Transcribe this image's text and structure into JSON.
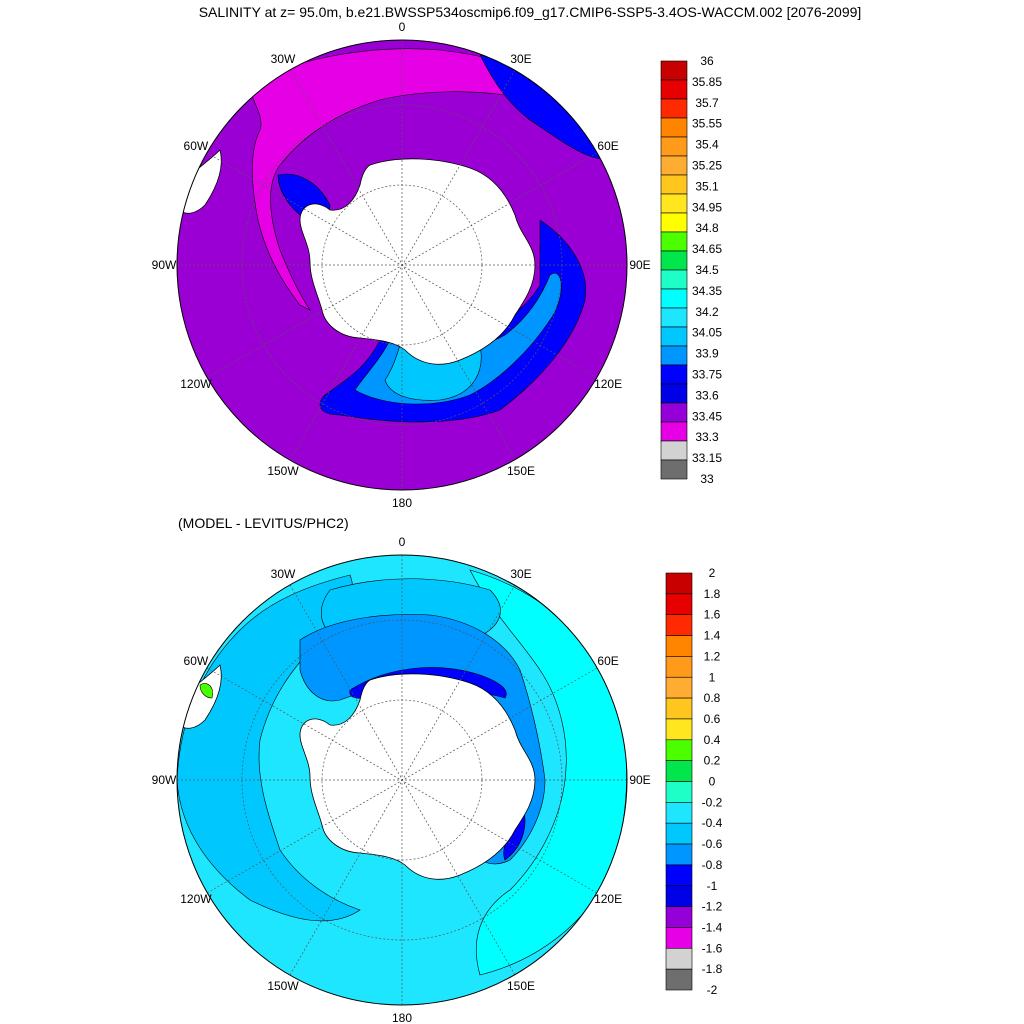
{
  "main_title": "SALINITY at z=  95.0m, b.e21.BWSSP534oscmip6.f09_g17.CMIP6-SSP5-3.4OS-WACCM.002 [2076-2099]",
  "subtitle": "(MODEL - LEVITUS/PHC2)",
  "lon_labels": [
    "0",
    "30E",
    "60E",
    "90E",
    "120E",
    "150E",
    "180",
    "150W",
    "120W",
    "90W",
    "60W",
    "30W"
  ],
  "top_map": {
    "background_color": "#9a00d4",
    "colorbar": {
      "labels": [
        "36",
        "35.85",
        "35.7",
        "35.55",
        "35.4",
        "35.25",
        "35.1",
        "34.95",
        "34.8",
        "34.65",
        "34.5",
        "34.35",
        "34.2",
        "34.05",
        "33.9",
        "33.75",
        "33.6",
        "33.45",
        "33.3",
        "33.15",
        "33"
      ],
      "colors": [
        "#c80000",
        "#e60000",
        "#ff2a00",
        "#ff8400",
        "#ff9a1a",
        "#ffac33",
        "#ffc61e",
        "#ffe61e",
        "#ffff00",
        "#4cff00",
        "#00e64c",
        "#1effc8",
        "#00ffff",
        "#1ee6ff",
        "#00c8ff",
        "#0096ff",
        "#0000ff",
        "#0000e6",
        "#9600d8",
        "#e600e6",
        "#d2d2d2",
        "#6e6e6e"
      ]
    }
  },
  "bottom_map": {
    "background_color": "#1ee6ff",
    "colorbar": {
      "labels": [
        "2",
        "1.8",
        "1.6",
        "1.4",
        "1.2",
        "1",
        "0.8",
        "0.6",
        "0.4",
        "0.2",
        "0",
        "-0.2",
        "-0.4",
        "-0.6",
        "-0.8",
        "-1",
        "-1.2",
        "-1.4",
        "-1.6",
        "-1.8",
        "-2"
      ],
      "colors": [
        "#c80000",
        "#e60000",
        "#ff2a00",
        "#ff8400",
        "#ff9a1a",
        "#ffac33",
        "#ffc61e",
        "#ffe61e",
        "#4cff00",
        "#00e64c",
        "#1effc8",
        "#1ee6ff",
        "#00c8ff",
        "#0096ff",
        "#0000ff",
        "#0000e6",
        "#9600d8",
        "#e600e6",
        "#d2d2d2",
        "#6e6e6e"
      ]
    }
  }
}
